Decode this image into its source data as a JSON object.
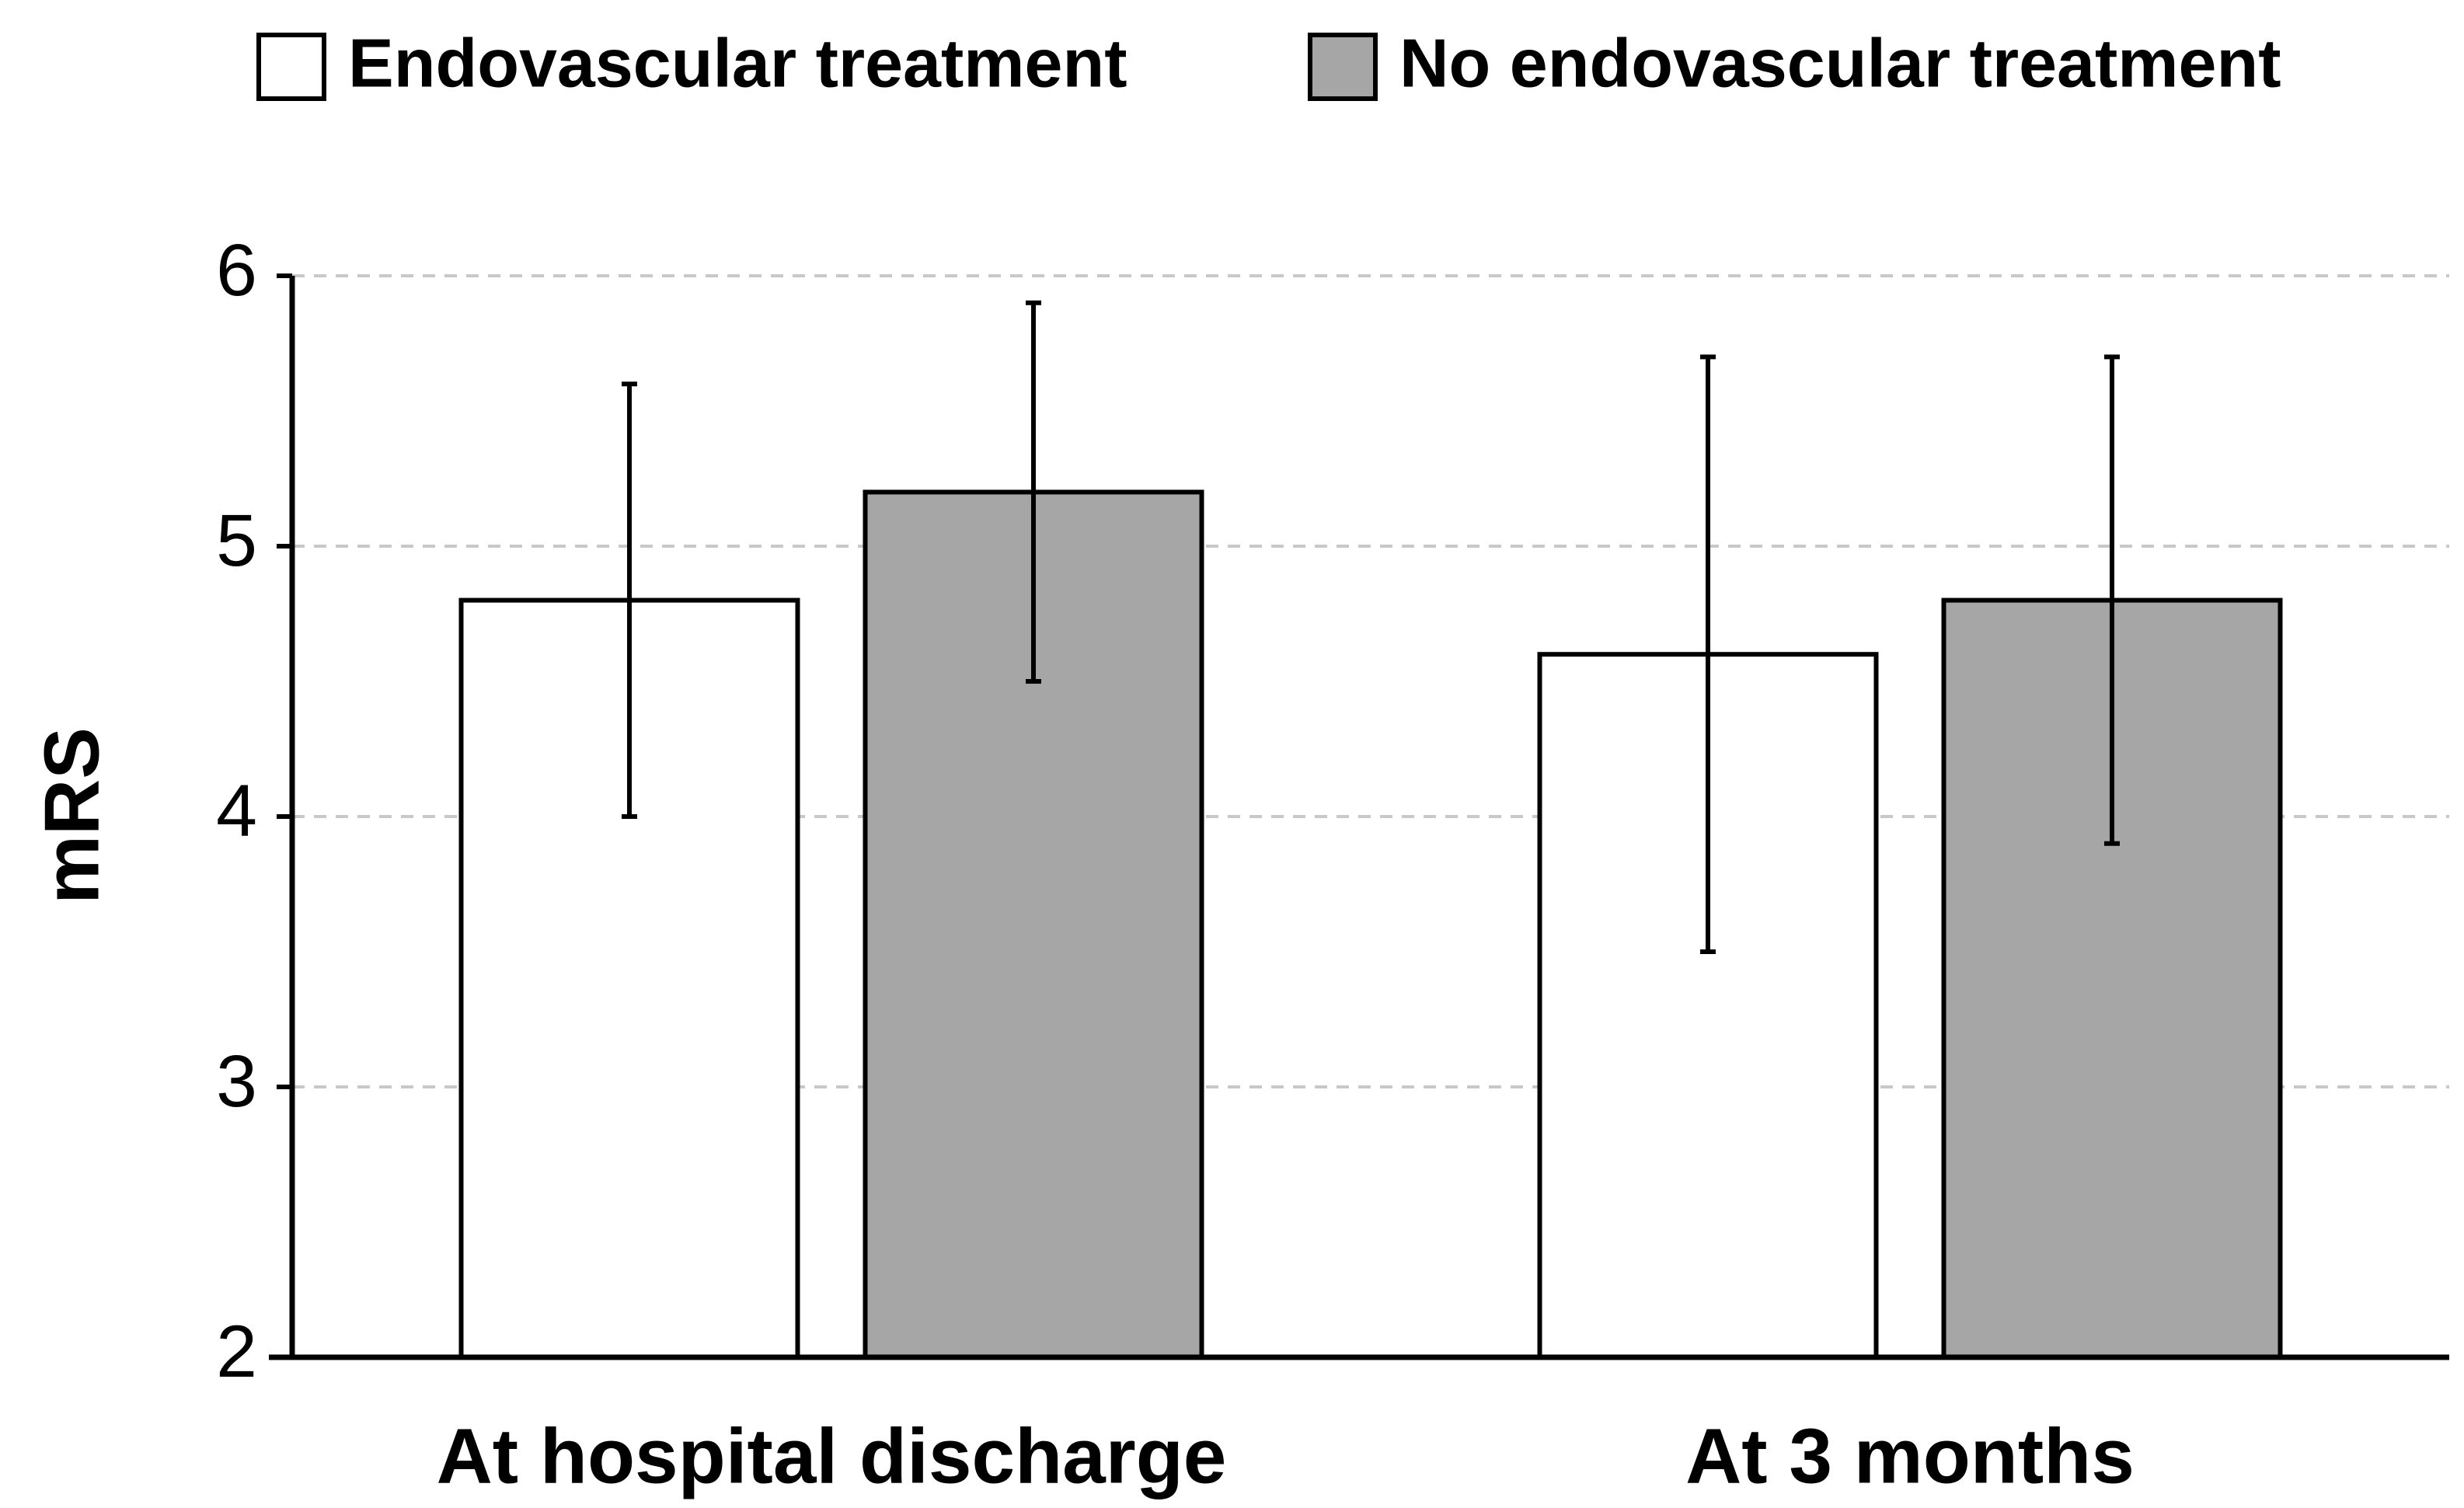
{
  "chart_data": {
    "type": "bar",
    "y_label": "mRS",
    "categories": [
      "At hospital discharge",
      "At 3 months"
    ],
    "series": [
      {
        "name": "Endovascular treatment",
        "color": "#ffffff",
        "values": [
          4.8,
          4.6
        ],
        "errors": [
          0.8,
          1.1
        ]
      },
      {
        "name": "No endovascular treatment",
        "color": "#a6a6a6",
        "values": [
          5.2,
          4.8
        ],
        "errors": [
          0.7,
          0.9
        ]
      }
    ],
    "ylim": [
      2,
      6
    ],
    "yticks": [
      2,
      3,
      4,
      5,
      6
    ],
    "grid": true,
    "legend": "top"
  }
}
